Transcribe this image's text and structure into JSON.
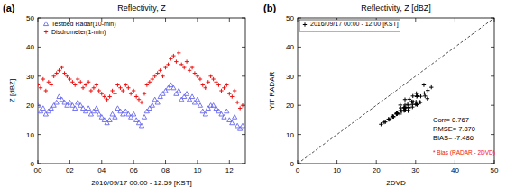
{
  "chart_data": [
    {
      "type": "scatter",
      "panel": "(a)",
      "title": "Reflectivity, Z",
      "x_label": "2016/09/17 00:00 - 12:59 [KST]",
      "y_label": "Z [dBZ]",
      "xlim": [
        0,
        13
      ],
      "ylim": [
        0,
        50
      ],
      "xticks": [
        {
          "value": 0,
          "label": "00"
        },
        {
          "value": 2,
          "label": "02"
        },
        {
          "value": 4,
          "label": "04"
        },
        {
          "value": 6,
          "label": "06"
        },
        {
          "value": 8,
          "label": "08"
        },
        {
          "value": 10,
          "label": "10"
        },
        {
          "value": 12,
          "label": "12"
        }
      ],
      "yticks": [
        0,
        10,
        20,
        30,
        40,
        50
      ],
      "legend": "upper left",
      "x": [
        0,
        0.17,
        0.33,
        0.5,
        0.67,
        0.83,
        1,
        1.17,
        1.33,
        1.5,
        1.67,
        1.83,
        2,
        2.17,
        2.33,
        2.5,
        2.67,
        2.83,
        3,
        3.17,
        3.33,
        3.5,
        3.67,
        3.83,
        4,
        4.17,
        4.33,
        4.5,
        4.67,
        4.83,
        5,
        5.17,
        5.33,
        5.5,
        5.67,
        5.83,
        6,
        6.17,
        6.33,
        6.5,
        6.67,
        6.83,
        7,
        7.17,
        7.33,
        7.5,
        7.67,
        7.83,
        8,
        8.17,
        8.33,
        8.5,
        8.67,
        8.83,
        9,
        9.17,
        9.33,
        9.5,
        9.67,
        9.83,
        10,
        10.17,
        10.33,
        10.5,
        10.67,
        10.83,
        11,
        11.17,
        11.33,
        11.5,
        11.67,
        11.83,
        12,
        12.17,
        12.33,
        12.5,
        12.67,
        12.83
      ],
      "series": [
        {
          "name": "Testbed Radar(10-min)",
          "color": "#6666ee",
          "marker": "triangle",
          "values": [
            20,
            18,
            19,
            17,
            18,
            19,
            20,
            21,
            23,
            22,
            21,
            20,
            21,
            20,
            19,
            21,
            20,
            19,
            18,
            19,
            17,
            18,
            19,
            17,
            16,
            15,
            14,
            15,
            17,
            16,
            19,
            18,
            17,
            18,
            17,
            16,
            17,
            15,
            14,
            13,
            16,
            18,
            19,
            20,
            22,
            21,
            23,
            24,
            25,
            26,
            27,
            26,
            24,
            25,
            22,
            23,
            24,
            22,
            23,
            21,
            22,
            20,
            18,
            17,
            19,
            20,
            20,
            19,
            18,
            17,
            16,
            18,
            15,
            14,
            16,
            13,
            12,
            13
          ]
        },
        {
          "name": "Disdrometer(1-min)",
          "color": "#ee1111",
          "marker": "plus",
          "values": [
            27,
            26,
            29,
            25,
            28,
            27,
            30,
            31,
            32,
            33,
            31,
            30,
            29,
            28,
            27,
            29,
            28,
            26,
            27,
            28,
            25,
            26,
            27,
            25,
            24,
            23,
            22,
            23,
            25,
            24,
            27,
            26,
            25,
            27,
            26,
            24,
            25,
            23,
            22,
            21,
            24,
            27,
            28,
            29,
            30,
            31,
            32,
            30,
            33,
            34,
            36,
            37,
            35,
            38,
            34,
            33,
            35,
            32,
            33,
            31,
            30,
            29,
            27,
            26,
            28,
            30,
            29,
            28,
            27,
            25,
            26,
            27,
            24,
            23,
            25,
            21,
            19,
            20
          ]
        }
      ]
    },
    {
      "type": "scatter",
      "panel": "(b)",
      "title": "Reflectivity, Z [dBZ]",
      "x_label": "2DVD",
      "y_label": "YIT RADAR",
      "xlim": [
        0,
        50
      ],
      "ylim": [
        0,
        50
      ],
      "xticks": [
        0,
        10,
        20,
        30,
        40,
        50
      ],
      "yticks": [
        0,
        10,
        20,
        30,
        40,
        50
      ],
      "legend": "upper left",
      "x": [
        27.3,
        26.1,
        29.2,
        25.4,
        28.1,
        27.5,
        30.2,
        31.1,
        32.4,
        33.0,
        31.2,
        30.4,
        29.1,
        28.3,
        27.2,
        29.4,
        28.0,
        26.2,
        27.1,
        28.2,
        25.3,
        26.4,
        27.0,
        25.2,
        24.1,
        23.2,
        22.3,
        23.4,
        25.1,
        24.3,
        27.2,
        26.3,
        25.1,
        27.4,
        26.0,
        24.2,
        25.3,
        23.1,
        22.0,
        21.2,
        24.4,
        27.1,
        28.3,
        29.2,
        30.1,
        31.3,
        32.2,
        30.3,
        33.1,
        34.0,
        32.1,
        30.2,
        29.3,
        28.4,
        30.4,
        29.0,
        27.3,
        26.1,
        28.2,
        30.0
      ],
      "series": [
        {
          "name": "2016/09/17 00:00 - 12:00 [KST]",
          "color": "#000000",
          "marker": "plus",
          "values": [
            20.1,
            18.2,
            19.4,
            17.3,
            18.1,
            19.2,
            20.4,
            21.1,
            23.2,
            22.3,
            21.0,
            20.2,
            21.3,
            20.1,
            19.0,
            21.2,
            20.3,
            19.1,
            18.2,
            19.3,
            17.1,
            18.0,
            19.2,
            17.4,
            16.2,
            15.1,
            14.3,
            15.2,
            17.0,
            16.1,
            19.3,
            18.1,
            17.2,
            18.3,
            17.0,
            16.2,
            17.1,
            15.3,
            14.2,
            13.5,
            16.1,
            18.2,
            19.1,
            20.3,
            21.2,
            23.1,
            24.2,
            23.0,
            25.1,
            26.2,
            27.0,
            24.1,
            23.2,
            22.1,
            23.3,
            21.2,
            22.0,
            20.1,
            18.2,
            20.3
          ]
        }
      ],
      "annotations": [
        {
          "text": "Corr= 0.767",
          "color": "#000000"
        },
        {
          "text": "RMSE= 7.870",
          "color": "#000000"
        },
        {
          "text": "BIAS= -7.486",
          "color": "#000000"
        },
        {
          "text": "* Bias (RADAR - 2DVD)",
          "color": "#ee1111"
        }
      ]
    }
  ]
}
